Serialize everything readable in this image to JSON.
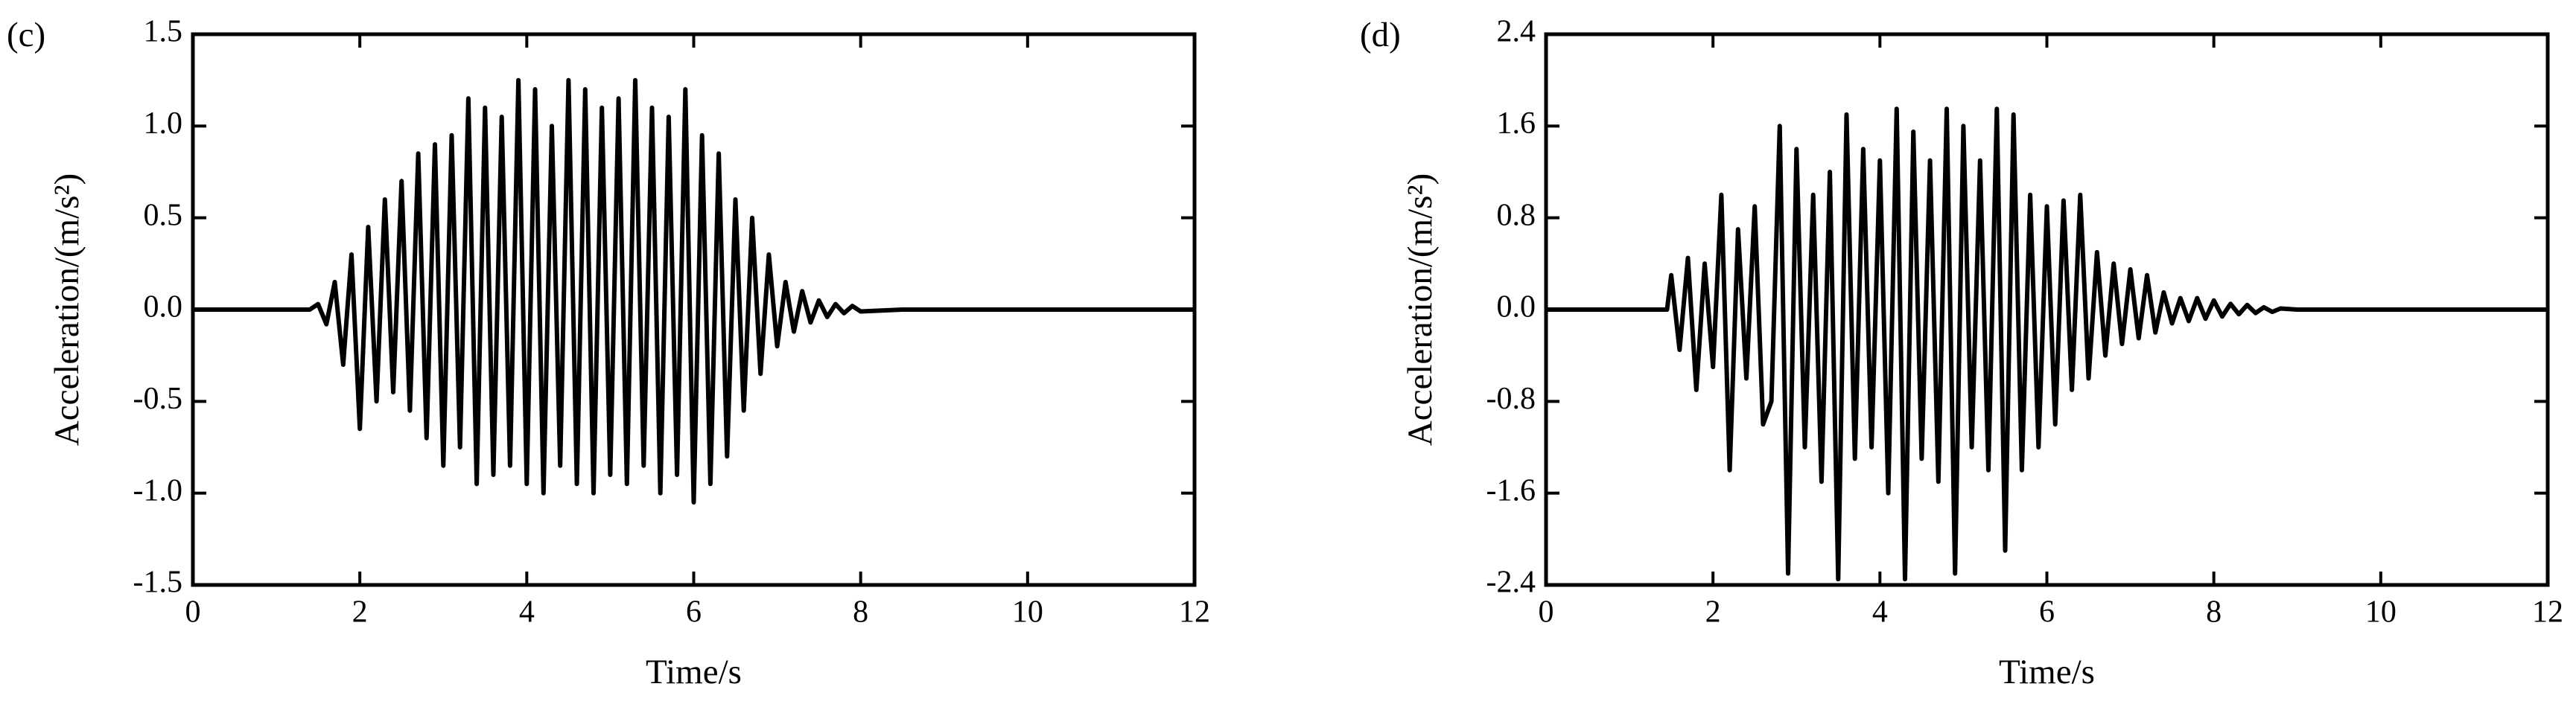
{
  "chart_data": [
    {
      "type": "line",
      "title": "(c)",
      "xlabel": "Time/s",
      "ylabel": "Acceleration/(m/s²)",
      "color": "#000000",
      "x": [
        0,
        1.4,
        1.5,
        1.6,
        1.7,
        1.8,
        1.9,
        2.0,
        2.1,
        2.2,
        2.3,
        2.4,
        2.5,
        2.6,
        2.7,
        2.8,
        2.9,
        3.0,
        3.1,
        3.2,
        3.3,
        3.4,
        3.5,
        3.6,
        3.7,
        3.8,
        3.9,
        4.0,
        4.1,
        4.2,
        4.3,
        4.4,
        4.5,
        4.6,
        4.7,
        4.8,
        4.9,
        5.0,
        5.1,
        5.2,
        5.3,
        5.4,
        5.5,
        5.6,
        5.7,
        5.8,
        5.9,
        6.0,
        6.1,
        6.2,
        6.3,
        6.4,
        6.5,
        6.6,
        6.7,
        6.8,
        6.9,
        7.0,
        7.1,
        7.2,
        7.3,
        7.4,
        7.5,
        7.6,
        7.7,
        7.8,
        7.9,
        8.0,
        8.5,
        12
      ],
      "values": [
        0,
        0,
        0.03,
        -0.08,
        0.15,
        -0.3,
        0.3,
        -0.65,
        0.45,
        -0.5,
        0.6,
        -0.45,
        0.7,
        -0.55,
        0.85,
        -0.7,
        0.9,
        -0.85,
        0.95,
        -0.75,
        1.15,
        -0.95,
        1.1,
        -0.9,
        1.05,
        -0.85,
        1.25,
        -0.95,
        1.2,
        -1.0,
        1.0,
        -0.85,
        1.25,
        -0.95,
        1.2,
        -1.0,
        1.1,
        -0.9,
        1.15,
        -0.95,
        1.25,
        -0.85,
        1.1,
        -1.0,
        1.05,
        -0.9,
        1.2,
        -1.05,
        0.95,
        -0.95,
        0.85,
        -0.8,
        0.6,
        -0.55,
        0.5,
        -0.35,
        0.3,
        -0.2,
        0.15,
        -0.12,
        0.1,
        -0.07,
        0.05,
        -0.04,
        0.03,
        -0.02,
        0.02,
        -0.01,
        0,
        0
      ],
      "xlim": [
        0,
        12
      ],
      "xticks": [
        0,
        2,
        4,
        6,
        8,
        10,
        12
      ],
      "ylim": [
        -1.5,
        1.5
      ],
      "yticks": [
        -1.5,
        {
          "value": -1,
          "label": "-1.0"
        },
        -0.5,
        {
          "value": 0,
          "label": "0.0"
        },
        0.5,
        {
          "value": 1,
          "label": "1.0"
        },
        1.5
      ]
    },
    {
      "type": "line",
      "title": "(d)",
      "xlabel": "Time/s",
      "ylabel": "Acceleration/(m/s²)",
      "color": "#000000",
      "x": [
        0,
        1.45,
        1.5,
        1.6,
        1.7,
        1.8,
        1.9,
        2.0,
        2.1,
        2.2,
        2.3,
        2.4,
        2.5,
        2.6,
        2.7,
        2.8,
        2.9,
        3.0,
        3.1,
        3.2,
        3.3,
        3.4,
        3.5,
        3.6,
        3.7,
        3.8,
        3.9,
        4.0,
        4.1,
        4.2,
        4.3,
        4.4,
        4.5,
        4.6,
        4.7,
        4.8,
        4.9,
        5.0,
        5.1,
        5.2,
        5.3,
        5.4,
        5.5,
        5.6,
        5.7,
        5.8,
        5.9,
        6.0,
        6.1,
        6.2,
        6.3,
        6.4,
        6.5,
        6.6,
        6.7,
        6.8,
        6.9,
        7.0,
        7.1,
        7.2,
        7.3,
        7.4,
        7.5,
        7.6,
        7.7,
        7.8,
        7.9,
        8.0,
        8.1,
        8.2,
        8.3,
        8.4,
        8.5,
        8.6,
        8.7,
        8.8,
        9.0,
        12
      ],
      "values": [
        0,
        0,
        0.3,
        -0.35,
        0.45,
        -0.7,
        0.4,
        -0.5,
        1.0,
        -1.4,
        0.7,
        -0.6,
        0.9,
        -1.0,
        -0.8,
        1.6,
        -2.3,
        1.4,
        -1.2,
        1.0,
        -1.5,
        1.2,
        -2.35,
        1.7,
        -1.3,
        1.4,
        -1.2,
        1.3,
        -1.6,
        1.75,
        -2.35,
        1.55,
        -1.3,
        1.3,
        -1.5,
        1.75,
        -2.3,
        1.6,
        -1.2,
        1.3,
        -1.4,
        1.75,
        -2.1,
        1.7,
        -1.4,
        1.0,
        -1.2,
        0.9,
        -1.0,
        0.95,
        -0.7,
        1.0,
        -0.6,
        0.5,
        -0.4,
        0.4,
        -0.3,
        0.35,
        -0.25,
        0.3,
        -0.2,
        0.15,
        -0.12,
        0.1,
        -0.1,
        0.1,
        -0.08,
        0.08,
        -0.06,
        0.05,
        -0.04,
        0.04,
        -0.03,
        0.02,
        -0.02,
        0.01,
        0,
        0
      ],
      "xlim": [
        0,
        12
      ],
      "xticks": [
        0,
        2,
        4,
        6,
        8,
        10,
        12
      ],
      "ylim": [
        -2.4,
        2.4
      ],
      "yticks": [
        -2.4,
        -1.6,
        -0.8,
        {
          "value": 0,
          "label": "0.0"
        },
        0.8,
        1.6,
        2.4
      ]
    }
  ]
}
